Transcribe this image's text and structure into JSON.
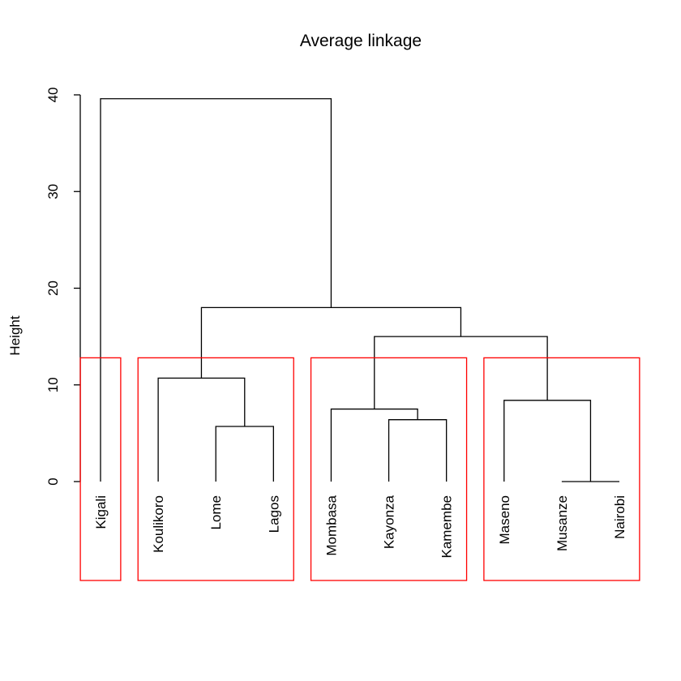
{
  "chart_data": {
    "type": "dendrogram",
    "title": "Average linkage",
    "ylabel": "Height",
    "xlabel": "",
    "ylim": [
      0,
      40
    ],
    "y_ticks": [
      0,
      10,
      20,
      30,
      40
    ],
    "y_tick_labels": [
      "0",
      "10",
      "20",
      "30",
      "40"
    ],
    "leaves": [
      "Kigali",
      "Koulikoro",
      "Lome",
      "Lagos",
      "Mombasa",
      "Kayonza",
      "Kamembe",
      "Maseno",
      "Musanze",
      "Nairobi"
    ],
    "merges": [
      {
        "a": "Musanze",
        "b": "Nairobi",
        "height": 0.0
      },
      {
        "a": "Lome",
        "b": "Lagos",
        "height": 5.7
      },
      {
        "a": "Kayonza",
        "b": "Kamembe",
        "height": 6.4
      },
      {
        "a": "Mombasa",
        "b": "(Kayonza, Kamembe)",
        "height": 7.5
      },
      {
        "a": "Maseno",
        "b": "(Musanze, Nairobi)",
        "height": 8.4
      },
      {
        "a": "Koulikoro",
        "b": "(Lome, Lagos)",
        "height": 10.7
      },
      {
        "a": "(Mombasa, Kayonza, Kamembe)",
        "b": "(Maseno, Musanze, Nairobi)",
        "height": 15.0
      },
      {
        "a": "(Koulikoro, Lome, Lagos)",
        "b": "(Mombasa … Nairobi)",
        "height": 18.0
      },
      {
        "a": "Kigali",
        "b": "(Koulikoro … Nairobi)",
        "height": 39.6
      }
    ],
    "cluster_boxes": {
      "k": 4,
      "cut_height": 12.8,
      "color": "#ff0000",
      "groups": [
        [
          "Kigali"
        ],
        [
          "Koulikoro",
          "Lome",
          "Lagos"
        ],
        [
          "Mombasa",
          "Kayonza",
          "Kamembe"
        ],
        [
          "Maseno",
          "Musanze",
          "Nairobi"
        ]
      ]
    }
  }
}
